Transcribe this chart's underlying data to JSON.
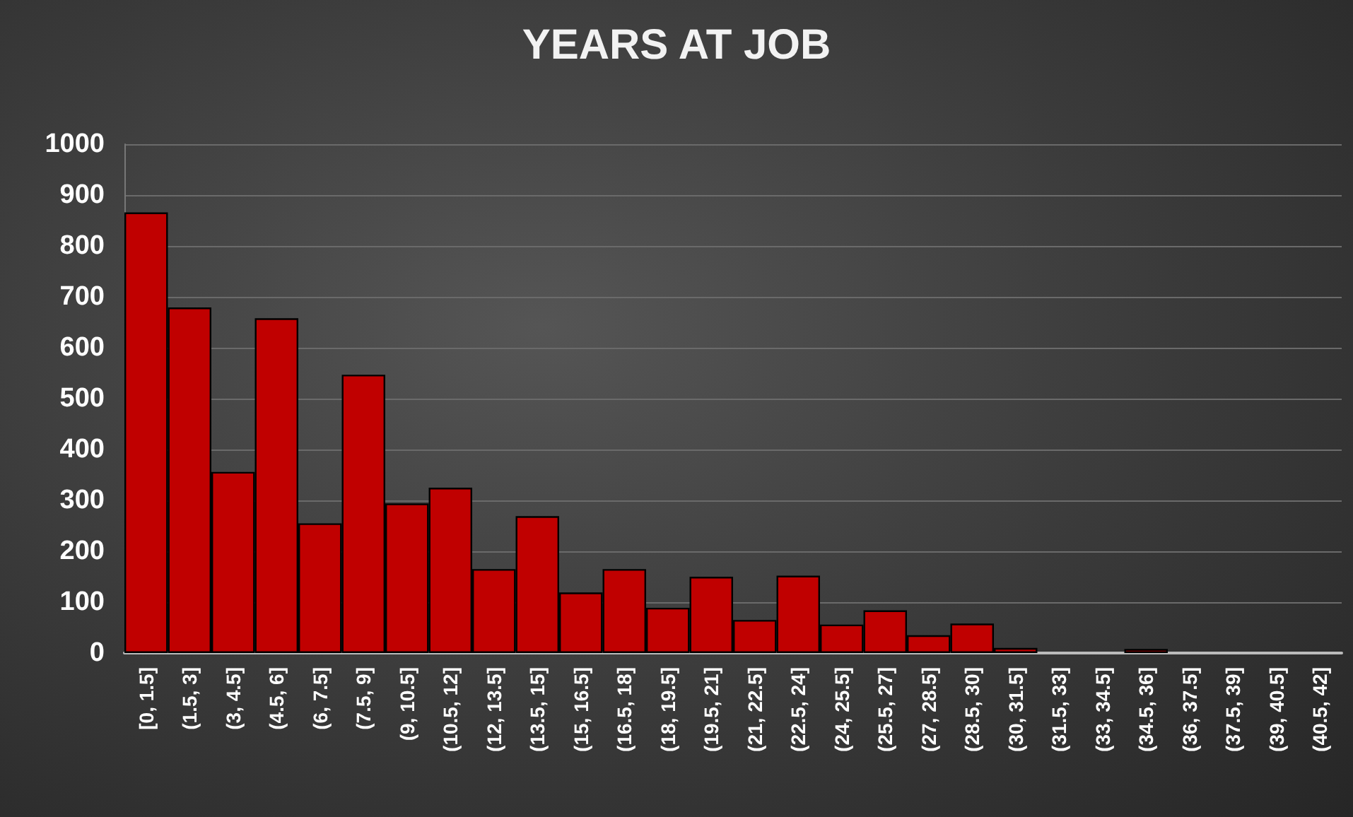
{
  "chart_data": {
    "type": "bar",
    "title": "YEARS AT JOB",
    "categories": [
      "[0, 1.5]",
      "(1.5, 3]",
      "(3, 4.5]",
      "(4.5, 6]",
      "(6, 7.5]",
      "(7.5, 9]",
      "(9, 10.5]",
      "(10.5, 12]",
      "(12, 13.5]",
      "(13.5, 15]",
      "(15, 16.5]",
      "(16.5, 18]",
      "(18, 19.5]",
      "(19.5, 21]",
      "(21, 22.5]",
      "(22.5, 24]",
      "(24, 25.5]",
      "(25.5, 27]",
      "(27, 28.5]",
      "(28.5, 30]",
      "(30, 31.5]",
      "(31.5, 33]",
      "(33, 34.5]",
      "(34.5, 36]",
      "(36, 37.5]",
      "(37.5, 39]",
      "(39, 40.5]",
      "(40.5, 42]"
    ],
    "values": [
      866,
      679,
      356,
      658,
      255,
      547,
      294,
      325,
      165,
      269,
      119,
      165,
      89,
      150,
      65,
      152,
      56,
      84,
      35,
      58,
      10,
      0,
      0,
      8,
      0,
      0,
      0,
      0
    ],
    "color": "#c00000",
    "ylim": [
      0,
      1000
    ],
    "yticks": [
      0,
      100,
      200,
      300,
      400,
      500,
      600,
      700,
      800,
      900,
      1000
    ],
    "grid": "y"
  }
}
